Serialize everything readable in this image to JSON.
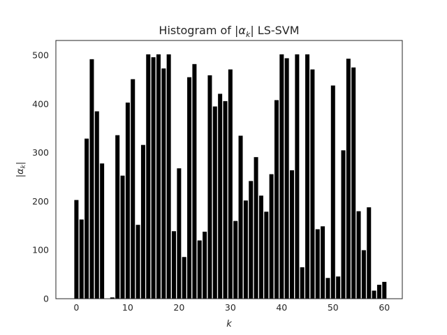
{
  "chart_data": {
    "type": "bar",
    "title": "Histogram of |α_k| LS-SVM",
    "title_parts": {
      "prefix": "Histogram of |",
      "symbol": "α",
      "subscript": "k",
      "suffix": "| LS-SVM"
    },
    "xlabel": "k",
    "ylabel": "|α_k|",
    "ylabel_parts": {
      "prefix": "|",
      "symbol": "α",
      "subscript": "k",
      "suffix": "|"
    },
    "xlim": [
      -4,
      63.5
    ],
    "ylim": [
      0,
      530
    ],
    "xticks": [
      0,
      10,
      20,
      30,
      40,
      50,
      60
    ],
    "yticks": [
      0,
      100,
      200,
      300,
      400,
      500
    ],
    "grid": false,
    "bar_color": "#000000",
    "bar_edge_color": "#ffffff",
    "x": [
      0,
      1,
      2,
      3,
      4,
      5,
      6,
      7,
      8,
      9,
      10,
      11,
      12,
      13,
      14,
      15,
      16,
      17,
      18,
      19,
      20,
      21,
      22,
      23,
      24,
      25,
      26,
      27,
      28,
      29,
      30,
      31,
      32,
      33,
      34,
      35,
      36,
      37,
      38,
      39,
      40,
      41,
      42,
      43,
      44,
      45,
      46,
      47,
      48,
      49,
      50,
      51,
      52,
      53,
      54,
      55,
      56,
      57,
      58,
      59,
      60
    ],
    "values": [
      203,
      163,
      329,
      492,
      385,
      278,
      0,
      3,
      336,
      253,
      403,
      451,
      152,
      316,
      502,
      496,
      502,
      473,
      502,
      139,
      268,
      86,
      455,
      482,
      120,
      138,
      459,
      395,
      421,
      406,
      471,
      160,
      335,
      202,
      242,
      291,
      212,
      179,
      256,
      408,
      502,
      494,
      264,
      502,
      65,
      502,
      471,
      143,
      149,
      43,
      438,
      46,
      305,
      493,
      475,
      180,
      100,
      188,
      17,
      29,
      35
    ]
  }
}
